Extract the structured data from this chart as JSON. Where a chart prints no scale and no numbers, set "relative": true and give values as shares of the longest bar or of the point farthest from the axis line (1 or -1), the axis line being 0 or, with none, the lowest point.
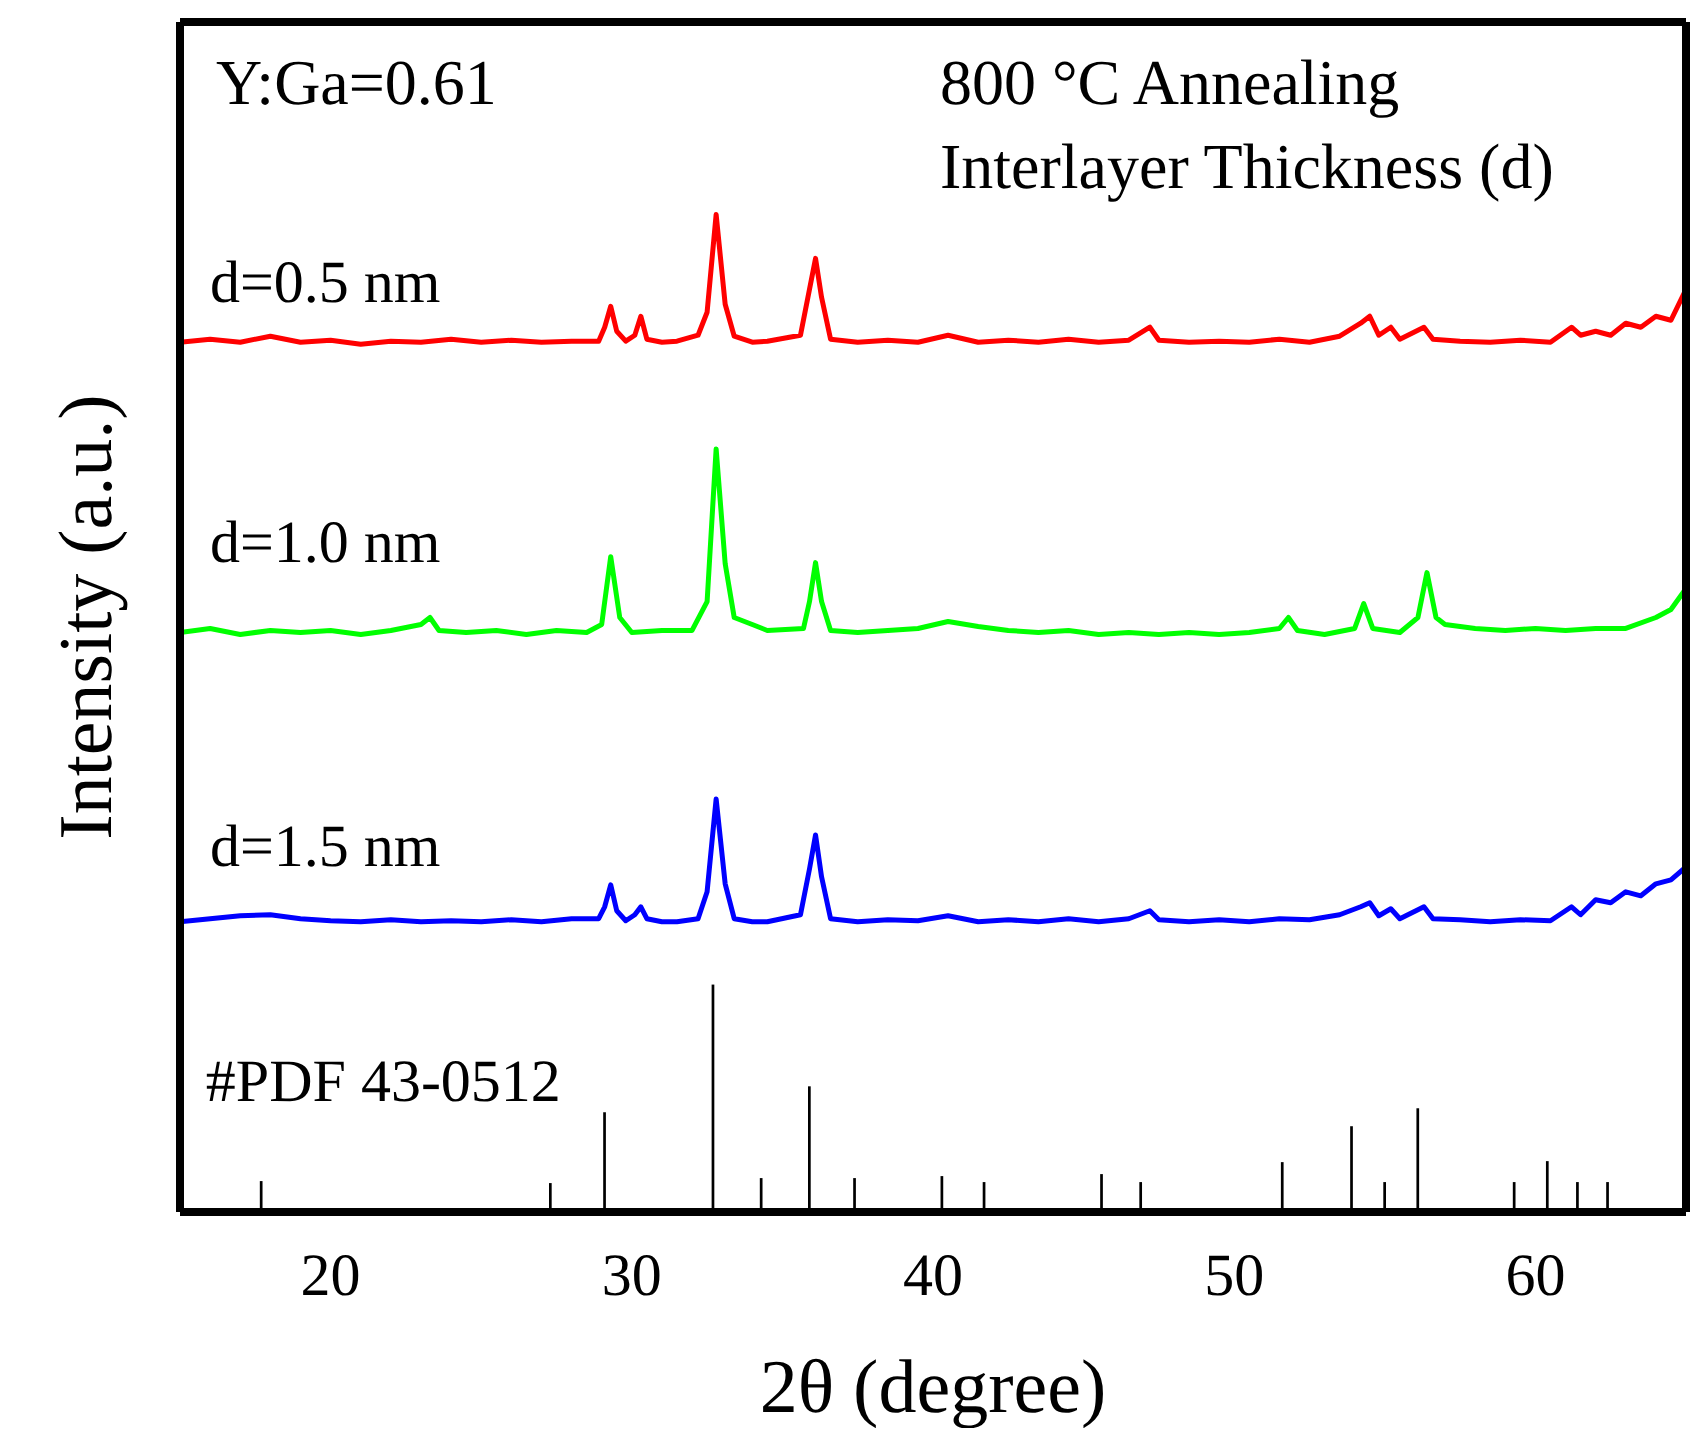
{
  "chart_data": {
    "type": "line",
    "relative": true,
    "xlabel": "2θ (degree)",
    "ylabel": "Intensity (a.u.)",
    "xlim": [
      15,
      65
    ],
    "xticks": [
      20,
      30,
      40,
      50,
      60
    ],
    "annotations": [
      "Y:Ga=0.61",
      "800 °C Annealing",
      "Interlayer Thickness (d)"
    ],
    "series": [
      {
        "name": "d=0.5 nm",
        "color": "#ff0000",
        "x": [
          15,
          16,
          17,
          18,
          19,
          20,
          21,
          22,
          23,
          24,
          25,
          26,
          27,
          28,
          28.9,
          29.1,
          29.3,
          29.5,
          29.8,
          30.1,
          30.3,
          30.5,
          31,
          31.5,
          32.2,
          32.5,
          32.8,
          33.1,
          33.4,
          34,
          34.5,
          35.6,
          35.9,
          36.1,
          36.3,
          36.6,
          37.5,
          38.5,
          39.5,
          40.5,
          41.5,
          42.5,
          43.5,
          44.5,
          45.5,
          46.5,
          47.2,
          47.5,
          48.5,
          49.5,
          50.5,
          51.5,
          52.5,
          53.5,
          54.2,
          54.5,
          54.8,
          55.2,
          55.5,
          56.3,
          56.6,
          57.5,
          58.5,
          59.5,
          60.5,
          61.2,
          61.5,
          62,
          62.5,
          63,
          63.5,
          64,
          64.5,
          65
        ],
        "values": [
          0.872,
          0.875,
          0.872,
          0.878,
          0.872,
          0.874,
          0.87,
          0.873,
          0.872,
          0.875,
          0.872,
          0.874,
          0.872,
          0.873,
          0.873,
          0.887,
          0.908,
          0.883,
          0.873,
          0.879,
          0.898,
          0.875,
          0.872,
          0.873,
          0.879,
          0.902,
          1,
          0.91,
          0.878,
          0.872,
          0.873,
          0.879,
          0.925,
          0.956,
          0.917,
          0.875,
          0.872,
          0.874,
          0.872,
          0.879,
          0.872,
          0.874,
          0.872,
          0.875,
          0.872,
          0.874,
          0.887,
          0.874,
          0.872,
          0.873,
          0.872,
          0.875,
          0.872,
          0.878,
          0.891,
          0.898,
          0.879,
          0.887,
          0.875,
          0.887,
          0.875,
          0.873,
          0.872,
          0.874,
          0.872,
          0.887,
          0.879,
          0.883,
          0.879,
          0.891,
          0.887,
          0.898,
          0.894,
          0.925
        ]
      },
      {
        "name": "d=1.0 nm",
        "color": "#00ff00",
        "x": [
          15,
          16,
          17,
          18,
          19,
          20,
          21,
          22,
          23,
          23.3,
          23.6,
          24.5,
          25.5,
          26.5,
          27.5,
          28.5,
          29,
          29.3,
          29.6,
          30,
          31,
          32,
          32.5,
          32.8,
          33.1,
          33.4,
          34,
          34.5,
          35.7,
          35.9,
          36.1,
          36.3,
          36.6,
          37.5,
          38.5,
          39.5,
          40.5,
          41.5,
          42.5,
          43.5,
          44.5,
          45.5,
          46.5,
          47.5,
          48.5,
          49.5,
          50.5,
          51.5,
          51.8,
          52.1,
          53,
          54,
          54.3,
          54.6,
          55.5,
          56.1,
          56.4,
          56.7,
          57,
          58,
          59,
          60,
          61,
          62,
          63,
          64,
          64.5,
          65
        ],
        "values": [
          0.581,
          0.585,
          0.579,
          0.583,
          0.581,
          0.583,
          0.579,
          0.583,
          0.589,
          0.596,
          0.583,
          0.581,
          0.583,
          0.579,
          0.583,
          0.581,
          0.589,
          0.657,
          0.596,
          0.581,
          0.583,
          0.583,
          0.612,
          0.765,
          0.65,
          0.596,
          0.589,
          0.583,
          0.585,
          0.612,
          0.651,
          0.612,
          0.583,
          0.581,
          0.583,
          0.585,
          0.592,
          0.587,
          0.583,
          0.581,
          0.583,
          0.579,
          0.581,
          0.579,
          0.581,
          0.579,
          0.581,
          0.585,
          0.596,
          0.583,
          0.579,
          0.585,
          0.61,
          0.585,
          0.581,
          0.596,
          0.641,
          0.596,
          0.589,
          0.585,
          0.583,
          0.585,
          0.583,
          0.585,
          0.585,
          0.596,
          0.604,
          0.625
        ]
      },
      {
        "name": "d=1.5 nm",
        "color": "#0000ff",
        "x": [
          15,
          16,
          17,
          18,
          19,
          20,
          21,
          22,
          23,
          24,
          25,
          26,
          27,
          28,
          28.9,
          29.1,
          29.3,
          29.5,
          29.8,
          30.1,
          30.3,
          30.5,
          31,
          31.5,
          32.2,
          32.5,
          32.8,
          33.1,
          33.4,
          34,
          34.5,
          35.6,
          35.9,
          36.1,
          36.3,
          36.6,
          37.5,
          38.5,
          39.5,
          40.5,
          41.5,
          42.5,
          43.5,
          44.5,
          45.5,
          46.5,
          47.2,
          47.5,
          48.5,
          49.5,
          50.5,
          51.5,
          52.5,
          53.5,
          54.2,
          54.5,
          54.8,
          55.2,
          55.5,
          56.3,
          56.6,
          57.5,
          58.5,
          59.5,
          60.5,
          61.2,
          61.5,
          62,
          62.5,
          63,
          63.5,
          64,
          64.5,
          65
        ],
        "values": [
          0.291,
          0.294,
          0.297,
          0.298,
          0.294,
          0.292,
          0.291,
          0.293,
          0.291,
          0.292,
          0.291,
          0.293,
          0.291,
          0.294,
          0.294,
          0.306,
          0.328,
          0.302,
          0.292,
          0.298,
          0.306,
          0.294,
          0.291,
          0.291,
          0.294,
          0.321,
          0.414,
          0.329,
          0.294,
          0.291,
          0.291,
          0.298,
          0.344,
          0.378,
          0.336,
          0.294,
          0.291,
          0.293,
          0.292,
          0.297,
          0.291,
          0.293,
          0.291,
          0.294,
          0.291,
          0.294,
          0.302,
          0.293,
          0.291,
          0.293,
          0.291,
          0.294,
          0.293,
          0.298,
          0.306,
          0.31,
          0.297,
          0.304,
          0.294,
          0.306,
          0.294,
          0.293,
          0.291,
          0.293,
          0.292,
          0.306,
          0.298,
          0.313,
          0.31,
          0.321,
          0.317,
          0.329,
          0.333,
          0.346
        ]
      },
      {
        "name": "#PDF 43-0512",
        "type": "bar",
        "color": "#000000",
        "x": [
          17.7,
          27.3,
          29.1,
          32.7,
          34.3,
          35.9,
          37.4,
          40.3,
          41.7,
          45.6,
          46.9,
          51.6,
          53.9,
          55.0,
          56.1,
          59.3,
          60.4,
          61.4,
          62.4
        ],
        "values": [
          0.031,
          0.029,
          0.1,
          0.228,
          0.034,
          0.126,
          0.034,
          0.036,
          0.03,
          0.038,
          0.03,
          0.05,
          0.086,
          0.03,
          0.104,
          0.03,
          0.051,
          0.03,
          0.03
        ]
      }
    ]
  }
}
